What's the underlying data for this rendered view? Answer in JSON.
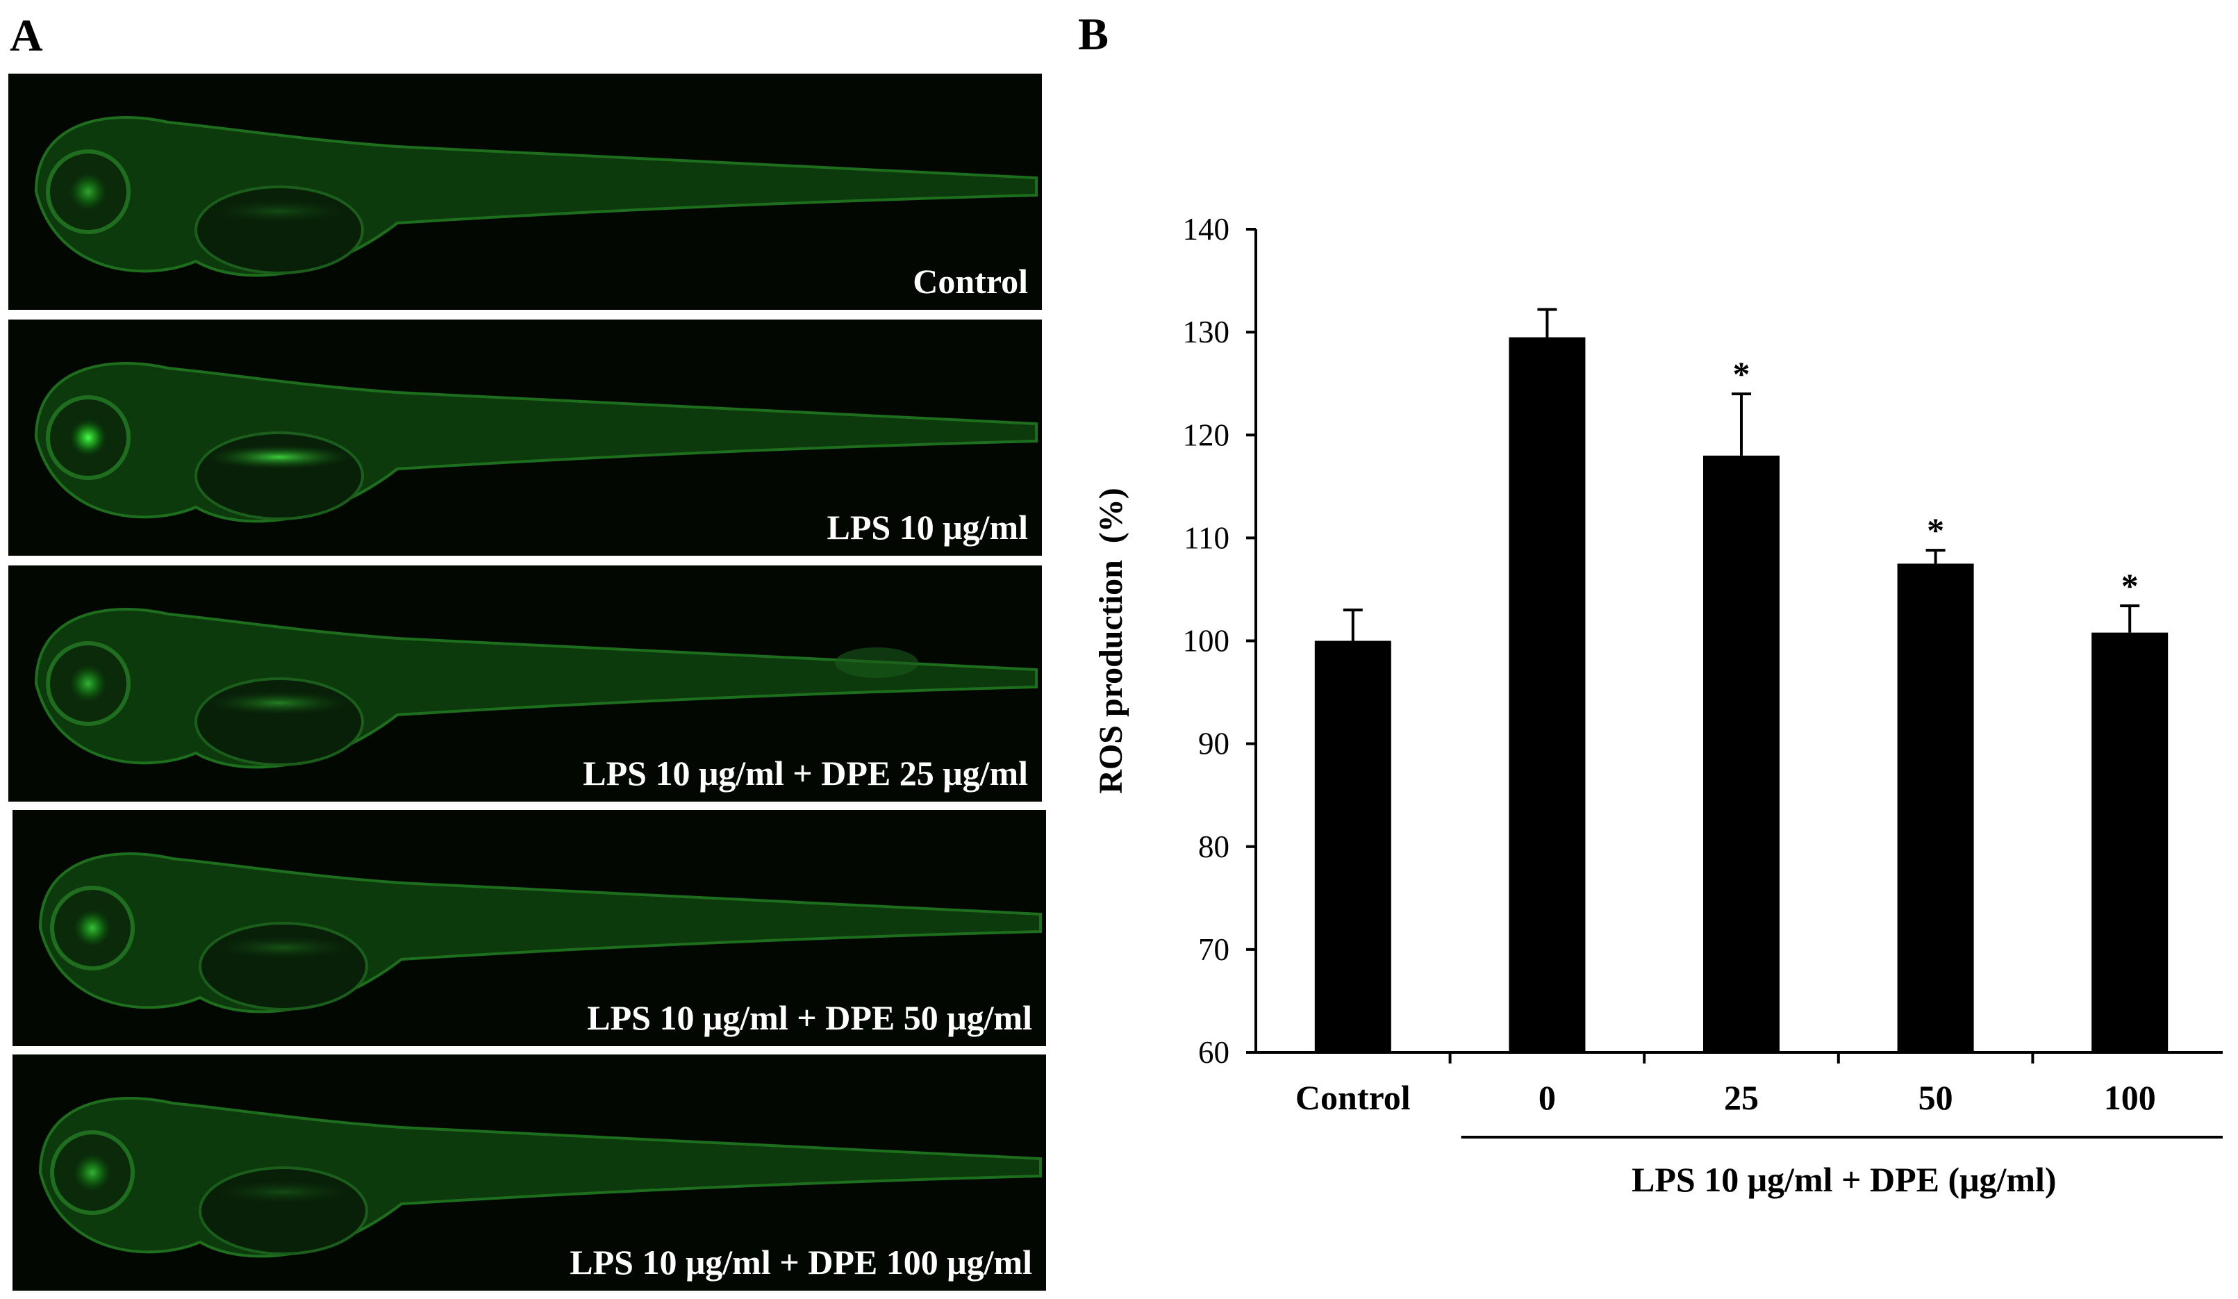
{
  "panels": {
    "a": "A",
    "b": "B"
  },
  "images": [
    {
      "label": "Control",
      "eye": 0.35,
      "gut": 0.25,
      "spot": 0
    },
    {
      "label": "LPS 10 μg/ml",
      "eye": 1.0,
      "gut": 1.0,
      "spot": 0
    },
    {
      "label": "LPS 10 μg/ml + DPE 25 μg/ml",
      "eye": 0.45,
      "gut": 0.55,
      "spot": 1
    },
    {
      "label": "LPS 10 μg/ml + DPE 50 μg/ml",
      "eye": 0.55,
      "gut": 0.3,
      "spot": 0
    },
    {
      "label": "LPS 10 μg/ml + DPE 100 μg/ml",
      "eye": 0.45,
      "gut": 0.25,
      "spot": 0
    }
  ],
  "chart_data": {
    "type": "bar",
    "title": "",
    "categories": [
      "Control",
      "0",
      "25",
      "50",
      "100"
    ],
    "values": [
      100,
      129.5,
      118,
      107.5,
      100.8
    ],
    "errors": [
      3,
      2.7,
      6,
      1.3,
      2.6
    ],
    "significance": [
      "",
      "",
      "*",
      "*",
      "*"
    ],
    "ylabel": "ROS production  (%)",
    "xlabel": "",
    "group_label": "LPS 10 μg/ml + DPE (μg/ml)",
    "ylim": [
      60,
      140
    ],
    "yticks": [
      60,
      70,
      80,
      90,
      100,
      110,
      120,
      130,
      140
    ],
    "bar_color": "#000000"
  }
}
